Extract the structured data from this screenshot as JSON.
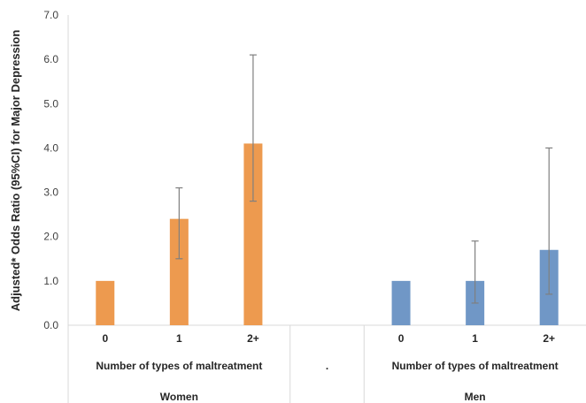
{
  "chart_data": {
    "type": "bar",
    "title": "",
    "ylabel": "Adjusted* Odds Ratio (95%CI) for Major Depression",
    "ylim": [
      0,
      7
    ],
    "yticks": [
      "0.0",
      "1.0",
      "2.0",
      "3.0",
      "4.0",
      "5.0",
      "6.0",
      "7.0"
    ],
    "grid": false,
    "legend": "none",
    "categories": [
      "0",
      "1",
      "2+",
      "",
      "0",
      "1",
      "2+"
    ],
    "group_labels": [
      "Number of types of maltreatment",
      ".",
      "Number of types of maltreatment"
    ],
    "outer_labels": [
      "Women",
      "",
      "Men"
    ],
    "series": [
      {
        "color": "#ed9a4f",
        "values": [
          1.0,
          2.4,
          4.1,
          null,
          null,
          null,
          null
        ],
        "ci_low": [
          null,
          1.5,
          2.8,
          null,
          null,
          null,
          null
        ],
        "ci_high": [
          null,
          3.1,
          6.1,
          null,
          null,
          null,
          null
        ]
      },
      {
        "color": "#7097c6",
        "values": [
          null,
          null,
          null,
          null,
          1.0,
          1.0,
          1.7
        ],
        "ci_low": [
          null,
          null,
          null,
          null,
          null,
          0.5,
          0.7
        ],
        "ci_high": [
          null,
          null,
          null,
          null,
          null,
          1.9,
          4.0
        ]
      }
    ]
  }
}
